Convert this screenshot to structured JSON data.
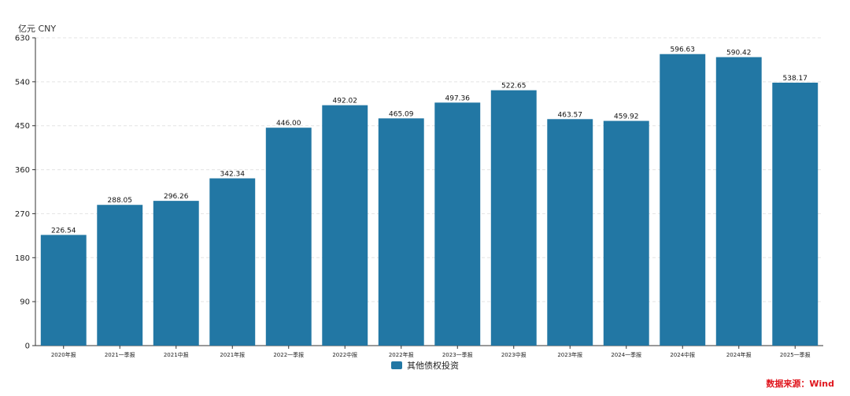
{
  "unit_label": "亿元  CNY",
  "legend_label": "其他债权投资",
  "source_label": "数据来源：Wind",
  "colors": {
    "bar": "#2277a4",
    "grid": "#e3e3e3",
    "axis": "#333333",
    "source": "#e0151d"
  },
  "chart_data": {
    "type": "bar",
    "title": "",
    "xlabel": "",
    "ylabel": "亿元  CNY",
    "ylim": [
      0,
      630
    ],
    "yticks": [
      0,
      90,
      180,
      270,
      360,
      450,
      540,
      630
    ],
    "grid": true,
    "legend_position": "bottom-center",
    "categories": [
      "2020年报",
      "2021一季报",
      "2021中报",
      "2021年报",
      "2022一季报",
      "2022中报",
      "2022年报",
      "2023一季报",
      "2023中报",
      "2023年报",
      "2024一季报",
      "2024中报",
      "2024年报",
      "2025一季报"
    ],
    "series": [
      {
        "name": "其他债权投资",
        "values": [
          226.54,
          288.05,
          296.26,
          342.34,
          446.0,
          492.02,
          465.09,
          497.36,
          522.65,
          463.57,
          459.92,
          596.63,
          590.42,
          538.17
        ],
        "labels": [
          "226.54",
          "288.05",
          "296.26",
          "342.34",
          "446.00",
          "492.02",
          "465.09",
          "497.36",
          "522.65",
          "463.57",
          "459.92",
          "596.63",
          "590.42",
          "538.17"
        ]
      }
    ]
  }
}
